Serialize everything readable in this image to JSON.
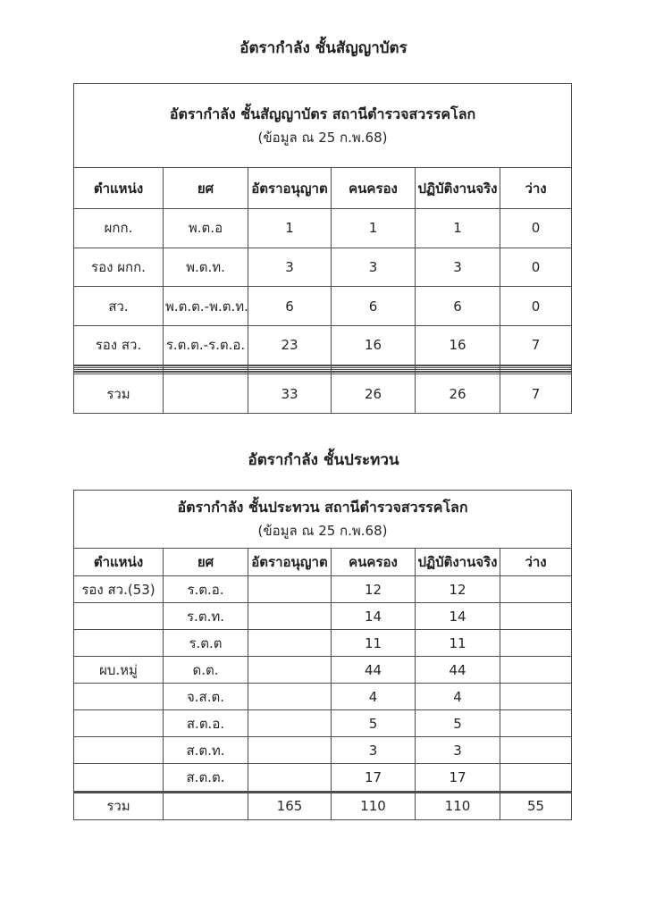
{
  "document": {
    "colors": {
      "background": "#ffffff",
      "text": "#262626",
      "border": "#4d4d4d"
    },
    "sections": [
      {
        "heading": "อัตรากำลัง ชั้นสัญญาบัตร",
        "table": {
          "title": "อัตรากำลัง ชั้นสัญญาบัตร สถานีตำรวจสวรรคโลก",
          "subtitle": "(ข้อมูล ณ 25 ก.พ.68)",
          "columns": [
            "ตำแหน่ง",
            "ยศ",
            "อัตราอนุญาต",
            "คนครอง",
            "ปฏิบัติงานจริง",
            "ว่าง"
          ],
          "rows": [
            [
              "ผกก.",
              "พ.ต.อ",
              "1",
              "1",
              "1",
              "0"
            ],
            [
              "รอง ผกก.",
              "พ.ต.ท.",
              "3",
              "3",
              "3",
              "0"
            ],
            [
              "สว.",
              "พ.ต.ต.-พ.ต.ท.",
              "6",
              "6",
              "6",
              "0"
            ],
            [
              "รอง สว.",
              "ร.ต.ต.-ร.ต.อ.",
              "23",
              "16",
              "16",
              "7"
            ],
            [
              "",
              "",
              "",
              "",
              "",
              ""
            ],
            [
              "",
              "",
              "",
              "",
              "",
              ""
            ],
            [
              "",
              "",
              "",
              "",
              "",
              ""
            ],
            [
              "",
              "",
              "",
              "",
              "",
              ""
            ],
            [
              "",
              "",
              "",
              "",
              "",
              ""
            ],
            [
              "",
              "",
              "",
              "",
              "",
              ""
            ]
          ],
          "total_row": [
            "รวม",
            "",
            "33",
            "26",
            "26",
            "7"
          ]
        }
      },
      {
        "heading": "อัตรากำลัง ชั้นประทวน",
        "table": {
          "title": "อัตรากำลัง ชั้นประทวน สถานีตำรวจสวรรคโลก",
          "subtitle": "(ข้อมูล ณ 25 ก.พ.68)",
          "columns": [
            "ตำแหน่ง",
            "ยศ",
            "อัตราอนุญาต",
            "คนครอง",
            "ปฏิบัติงานจริง",
            "ว่าง"
          ],
          "rows": [
            [
              "รอง สว.(53)",
              "ร.ต.อ.",
              "",
              "12",
              "12",
              ""
            ],
            [
              "",
              "ร.ต.ท.",
              "",
              "14",
              "14",
              ""
            ],
            [
              "",
              "ร.ต.ต",
              "",
              "11",
              "11",
              ""
            ],
            [
              "ผบ.หมู่",
              "ด.ต.",
              "",
              "44",
              "44",
              ""
            ],
            [
              "",
              "จ.ส.ต.",
              "",
              "4",
              "4",
              ""
            ],
            [
              "",
              "ส.ต.อ.",
              "",
              "5",
              "5",
              ""
            ],
            [
              "",
              "ส.ต.ท.",
              "",
              "3",
              "3",
              ""
            ],
            [
              "",
              "ส.ต.ต.",
              "",
              "17",
              "17",
              ""
            ],
            [
              "",
              "",
              "",
              "",
              "",
              ""
            ],
            [
              "",
              "",
              "",
              "",
              "",
              ""
            ]
          ],
          "total_row": [
            "รวม",
            "",
            "165",
            "110",
            "110",
            "55"
          ]
        }
      }
    ]
  }
}
